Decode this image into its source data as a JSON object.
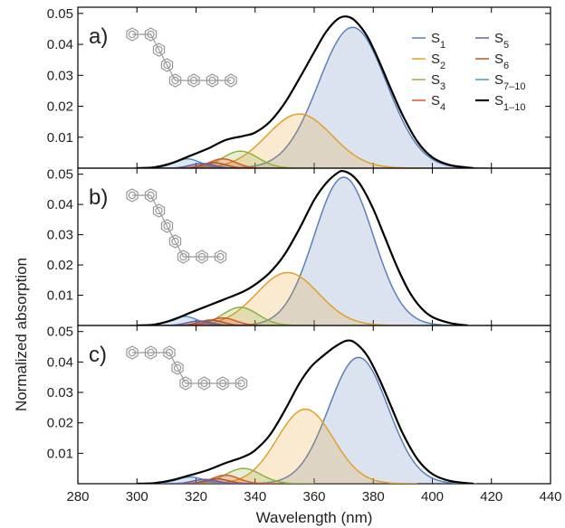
{
  "chart_data": {
    "type": "area",
    "xlabel": "Wavelength (nm)",
    "ylabel": "Normalized absorption",
    "xlim": [
      280,
      440
    ],
    "ylim": [
      0,
      0.052
    ],
    "x_ticks": [
      "280",
      "300",
      "320",
      "340",
      "360",
      "380",
      "400",
      "420",
      "440"
    ],
    "y_ticks": [
      "0.01",
      "0.02",
      "0.03",
      "0.04",
      "0.05"
    ],
    "grid": false,
    "legend_position": "top-right",
    "legend": [
      {
        "key": "S1",
        "base": "S",
        "sub": "1"
      },
      {
        "key": "S5",
        "base": "S",
        "sub": "5"
      },
      {
        "key": "S2",
        "base": "S",
        "sub": "2"
      },
      {
        "key": "S6",
        "base": "S",
        "sub": "6"
      },
      {
        "key": "S3",
        "base": "S",
        "sub": "3"
      },
      {
        "key": "S7",
        "base": "S",
        "sub": "7–10"
      },
      {
        "key": "S4",
        "base": "S",
        "sub": "4"
      },
      {
        "key": "SUM",
        "base": "S",
        "sub": "1–10"
      }
    ],
    "colors": {
      "S1": "#5b7fb9",
      "S2": "#e3a027",
      "S3": "#8db33f",
      "S4": "#e0532a",
      "S5": "#6e5aa6",
      "S6": "#b8551f",
      "S7": "#4b96c8",
      "SUM": "#000000"
    },
    "panels": [
      {
        "label": "a)",
        "molecule": [
          2,
          1,
          1,
          4
        ],
        "bands": [
          {
            "key": "S7",
            "center": 317,
            "height": 0.003,
            "width": 4.5
          },
          {
            "key": "S5",
            "center": 322,
            "height": 0.0015,
            "width": 4
          },
          {
            "key": "S6",
            "center": 326,
            "height": 0.0018,
            "width": 4
          },
          {
            "key": "S4",
            "center": 329,
            "height": 0.003,
            "width": 4.5
          },
          {
            "key": "S3",
            "center": 335,
            "height": 0.0055,
            "width": 6
          },
          {
            "key": "S2",
            "center": 355,
            "height": 0.0175,
            "width": 11
          },
          {
            "key": "S1",
            "center": 373,
            "height": 0.0455,
            "width": 11.5
          }
        ],
        "sum": [
          [
            300,
            0
          ],
          [
            306,
            0.0003
          ],
          [
            312,
            0.0017
          ],
          [
            318,
            0.004
          ],
          [
            324,
            0.0063
          ],
          [
            330,
            0.0091
          ],
          [
            336,
            0.0104
          ],
          [
            340,
            0.0115
          ],
          [
            345,
            0.015
          ],
          [
            350,
            0.021
          ],
          [
            355,
            0.029
          ],
          [
            360,
            0.0375
          ],
          [
            364,
            0.044
          ],
          [
            368,
            0.0482
          ],
          [
            371,
            0.049
          ],
          [
            374,
            0.0475
          ],
          [
            378,
            0.0425
          ],
          [
            382,
            0.0345
          ],
          [
            386,
            0.0255
          ],
          [
            390,
            0.017
          ],
          [
            395,
            0.0085
          ],
          [
            400,
            0.0035
          ],
          [
            406,
            0.001
          ],
          [
            414,
            0
          ]
        ]
      },
      {
        "label": "b)",
        "molecule": [
          2,
          1,
          1,
          1,
          3
        ],
        "bands": [
          {
            "key": "S7",
            "center": 316,
            "height": 0.003,
            "width": 4.5
          },
          {
            "key": "S5",
            "center": 321,
            "height": 0.0015,
            "width": 4
          },
          {
            "key": "S6",
            "center": 325,
            "height": 0.0018,
            "width": 4
          },
          {
            "key": "S4",
            "center": 329,
            "height": 0.0025,
            "width": 4.5
          },
          {
            "key": "S3",
            "center": 335,
            "height": 0.006,
            "width": 6
          },
          {
            "key": "S2",
            "center": 351,
            "height": 0.0175,
            "width": 10.5
          },
          {
            "key": "S1",
            "center": 370,
            "height": 0.049,
            "width": 10
          }
        ],
        "sum": [
          [
            300,
            0
          ],
          [
            306,
            0.0003
          ],
          [
            312,
            0.0018
          ],
          [
            318,
            0.0042
          ],
          [
            324,
            0.0065
          ],
          [
            330,
            0.0088
          ],
          [
            336,
            0.0112
          ],
          [
            340,
            0.0135
          ],
          [
            345,
            0.0175
          ],
          [
            350,
            0.0235
          ],
          [
            355,
            0.032
          ],
          [
            360,
            0.0415
          ],
          [
            364,
            0.047
          ],
          [
            368,
            0.0505
          ],
          [
            370,
            0.051
          ],
          [
            373,
            0.0495
          ],
          [
            376,
            0.046
          ],
          [
            380,
            0.0385
          ],
          [
            384,
            0.029
          ],
          [
            388,
            0.0195
          ],
          [
            392,
            0.0115
          ],
          [
            396,
            0.006
          ],
          [
            400,
            0.0028
          ],
          [
            406,
            0.0008
          ],
          [
            412,
            0
          ]
        ]
      },
      {
        "label": "c)",
        "molecule": [
          3,
          1,
          4
        ],
        "bands": [
          {
            "key": "S7",
            "center": 318,
            "height": 0.0022,
            "width": 4.5
          },
          {
            "key": "S5",
            "center": 323,
            "height": 0.0014,
            "width": 4
          },
          {
            "key": "S6",
            "center": 327,
            "height": 0.0016,
            "width": 4
          },
          {
            "key": "S4",
            "center": 330,
            "height": 0.0028,
            "width": 4.5
          },
          {
            "key": "S3",
            "center": 336,
            "height": 0.005,
            "width": 6
          },
          {
            "key": "S2",
            "center": 357,
            "height": 0.0245,
            "width": 9.5
          },
          {
            "key": "S1",
            "center": 375,
            "height": 0.0415,
            "width": 10
          }
        ],
        "sum": [
          [
            300,
            0
          ],
          [
            306,
            0.0002
          ],
          [
            312,
            0.0012
          ],
          [
            318,
            0.0028
          ],
          [
            324,
            0.0045
          ],
          [
            330,
            0.0068
          ],
          [
            336,
            0.0088
          ],
          [
            340,
            0.011
          ],
          [
            345,
            0.016
          ],
          [
            350,
            0.024
          ],
          [
            355,
            0.033
          ],
          [
            359,
            0.0385
          ],
          [
            363,
            0.042
          ],
          [
            367,
            0.045
          ],
          [
            371,
            0.047
          ],
          [
            374,
            0.0462
          ],
          [
            378,
            0.042
          ],
          [
            382,
            0.0345
          ],
          [
            386,
            0.0255
          ],
          [
            390,
            0.0165
          ],
          [
            395,
            0.008
          ],
          [
            400,
            0.0032
          ],
          [
            406,
            0.0009
          ],
          [
            414,
            0
          ]
        ]
      }
    ]
  }
}
